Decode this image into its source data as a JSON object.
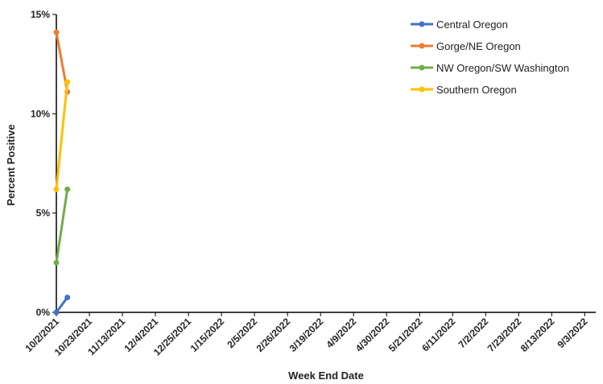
{
  "chart_data": {
    "type": "line",
    "xlabel": "Week End Date",
    "ylabel": "Percent Positive",
    "x_ticks": [
      "10/2/2021",
      "10/23/2021",
      "11/13/2021",
      "12/4/2021",
      "12/25/2021",
      "1/15/2022",
      "2/5/2022",
      "2/26/2022",
      "3/19/2022",
      "4/9/2022",
      "4/30/2022",
      "5/21/2022",
      "6/11/2022",
      "7/2/2022",
      "7/23/2022",
      "8/13/2022",
      "9/3/2022"
    ],
    "y_ticks": [
      "0%",
      "5%",
      "10%",
      "15%"
    ],
    "ylim": [
      0,
      15
    ],
    "xlim": [
      "10/2/2021",
      "9/10/2022"
    ],
    "x": [
      "10/2/2021",
      "10/9/2021"
    ],
    "series": [
      {
        "name": "Central Oregon",
        "color": "#4472C4",
        "values": [
          0.0,
          0.75
        ]
      },
      {
        "name": "Gorge/NE Oregon",
        "color": "#ED7D31",
        "values": [
          14.1,
          11.1
        ]
      },
      {
        "name": "NW Oregon/SW Washington",
        "color": "#70AD47",
        "values": [
          2.5,
          6.2
        ]
      },
      {
        "name": "Southern Oregon",
        "color": "#FFC000",
        "values": [
          6.2,
          11.6
        ]
      }
    ],
    "legend_position": "top-right",
    "grid": false
  }
}
